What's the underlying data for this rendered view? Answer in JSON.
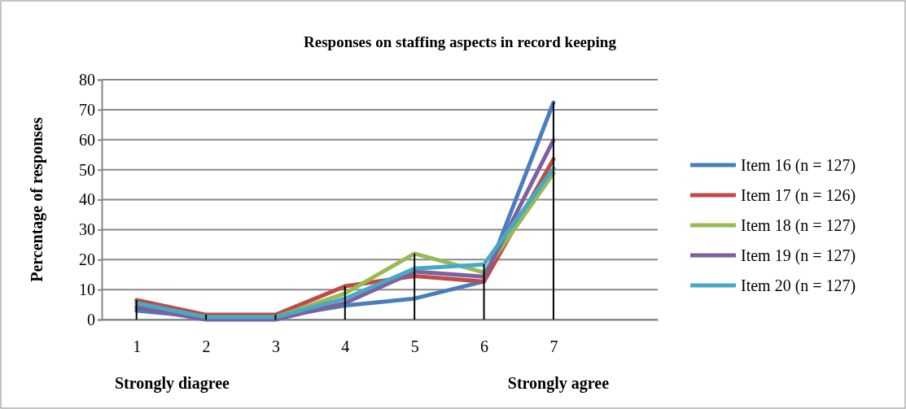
{
  "chart_data": {
    "type": "line",
    "title": "Responses on staffing aspects in record keeping",
    "ylabel": "Percentage of responses",
    "categories": [
      "1",
      "2",
      "3",
      "4",
      "5",
      "6",
      "7",
      null
    ],
    "series": [
      {
        "type": "bar",
        "color": "#000000",
        "values": [
          6.5,
          1.6,
          1.6,
          11.1,
          22,
          18.4,
          72.4,
          null
        ]
      },
      {
        "name": "Item 16 (n = 127)",
        "color": "#4a7ebb",
        "values": [
          3,
          0.8,
          0.8,
          4.7,
          7,
          12.7,
          72.4,
          null
        ]
      },
      {
        "name": "Item 17 (n = 126)",
        "color": "#be4b48",
        "values": [
          6.5,
          1.6,
          1.6,
          11.1,
          14.5,
          12.7,
          53.5,
          null
        ]
      },
      {
        "name": "Item 18 (n = 127)",
        "color": "#98b954",
        "values": [
          4.5,
          0.8,
          0.8,
          8.7,
          22,
          15.7,
          48.8,
          null
        ]
      },
      {
        "name": "Item 19 (n = 127)",
        "color": "#7d60a0",
        "values": [
          4,
          0,
          0,
          5.5,
          16,
          14.3,
          59.8,
          null
        ]
      },
      {
        "name": "Item 20 (n = 127)",
        "color": "#46aac5",
        "values": [
          5.5,
          0.8,
          0.8,
          7,
          17,
          18.4,
          50.4,
          null
        ]
      }
    ],
    "ylim": [
      0,
      80
    ],
    "yticks": [
      0,
      10,
      20,
      30,
      40,
      50,
      60,
      70,
      80
    ],
    "grid": "y",
    "legend": "right",
    "marker": "none",
    "line_style": "solid",
    "annotations": [
      "Strongly diagree",
      "Strongly agree"
    ]
  }
}
